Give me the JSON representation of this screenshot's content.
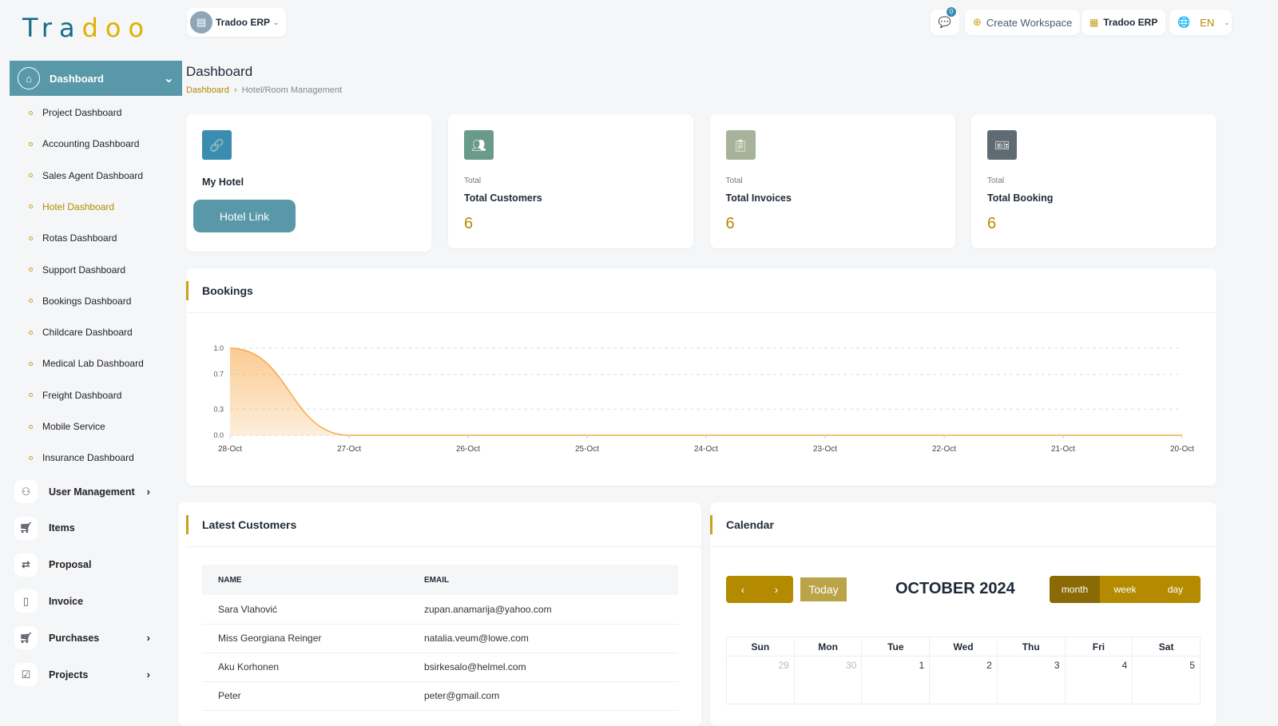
{
  "brand": {
    "logo_a": "Tra",
    "logo_b": "doo"
  },
  "topbar": {
    "workspace": "Tradoo ERP",
    "notifications_count": "0",
    "create_workspace": "Create Workspace",
    "app_switch": "Tradoo ERP",
    "language": "EN"
  },
  "sidebar": {
    "active": "Dashboard",
    "sub_items": [
      "Project Dashboard",
      "Accounting Dashboard",
      "Sales Agent Dashboard",
      "Hotel Dashboard",
      "Rotas Dashboard",
      "Support Dashboard",
      "Bookings Dashboard",
      "Childcare Dashboard",
      "Medical Lab Dashboard",
      "Freight Dashboard",
      "Mobile Service",
      "Insurance Dashboard"
    ],
    "active_sub": "Hotel Dashboard",
    "items": [
      {
        "label": "User Management",
        "icon": "users-icon",
        "arrow": true
      },
      {
        "label": "Items",
        "icon": "cart-icon",
        "arrow": false
      },
      {
        "label": "Proposal",
        "icon": "swap-icon",
        "arrow": false
      },
      {
        "label": "Invoice",
        "icon": "file-icon",
        "arrow": false
      },
      {
        "label": "Purchases",
        "icon": "cart-icon",
        "arrow": true
      },
      {
        "label": "Projects",
        "icon": "checkbox-icon",
        "arrow": true
      }
    ]
  },
  "page": {
    "title": "Dashboard",
    "breadcrumb": [
      "Dashboard",
      "Hotel/Room Management"
    ]
  },
  "stats": {
    "hotel": {
      "label": "My Hotel",
      "button": "Hotel Link"
    },
    "cards": [
      {
        "small": "Total",
        "label": "Total Customers",
        "value": "6",
        "color": "#6a9a8a"
      },
      {
        "small": "Total",
        "label": "Total Invoices",
        "value": "6",
        "color": "#a7b29a"
      },
      {
        "small": "Total",
        "label": "Total Booking",
        "value": "6",
        "color": "#5f6b73"
      }
    ]
  },
  "bookings": {
    "title": "Bookings"
  },
  "chart_data": {
    "type": "area",
    "x": [
      "28-Oct",
      "27-Oct",
      "26-Oct",
      "25-Oct",
      "24-Oct",
      "23-Oct",
      "22-Oct",
      "21-Oct",
      "20-Oct"
    ],
    "values": [
      1,
      0,
      0,
      0,
      0,
      0,
      0,
      0,
      0
    ],
    "yticks": [
      "0.0",
      "0.3",
      "0.7",
      "1.0"
    ],
    "ylim": [
      0,
      1
    ],
    "grid": true,
    "color": "#f7a94a"
  },
  "customers": {
    "title": "Latest Customers",
    "columns": [
      "NAME",
      "EMAIL"
    ],
    "rows": [
      [
        "Sara Vlahović",
        "zupan.anamarija@yahoo.com"
      ],
      [
        "Miss Georgiana Reinger",
        "natalia.veum@lowe.com"
      ],
      [
        "Aku Korhonen",
        "bsirkesalo@helmel.com"
      ],
      [
        "Peter",
        "peter@gmail.com"
      ]
    ]
  },
  "calendar": {
    "title": "Calendar",
    "today": "Today",
    "month_title": "OCTOBER 2024",
    "views": [
      "month",
      "week",
      "day"
    ],
    "active_view": "month",
    "days": [
      "Sun",
      "Mon",
      "Tue",
      "Wed",
      "Thu",
      "Fri",
      "Sat"
    ],
    "first_week": [
      "29",
      "30",
      "1",
      "2",
      "3",
      "4",
      "5"
    ]
  }
}
